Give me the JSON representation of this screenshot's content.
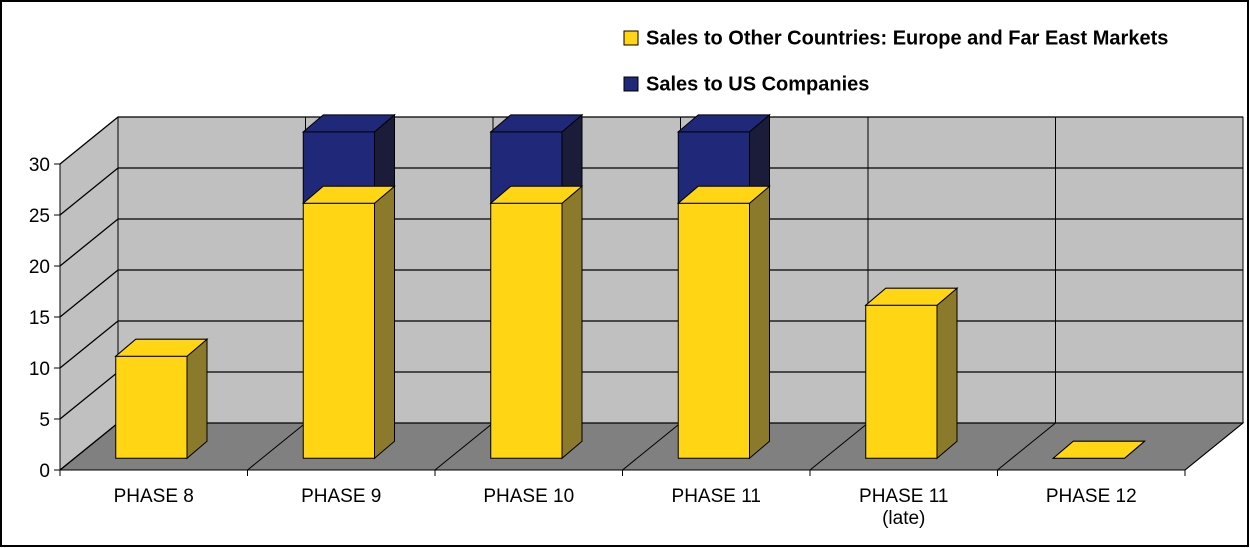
{
  "chart_data": {
    "type": "bar3d_stacked",
    "categories": [
      "PHASE 8",
      "PHASE 9",
      "PHASE 10",
      "PHASE 11",
      "PHASE 11\n(late)",
      "PHASE 12"
    ],
    "series": [
      {
        "name": "Sales to Other Countries: Europe and Far East Markets",
        "color": "#ffd514",
        "side": "#8c7a2c",
        "values": [
          10,
          25,
          25,
          25,
          15,
          0
        ]
      },
      {
        "name": "Sales to US Companies",
        "color": "#20287a",
        "side": "#1a1c3a",
        "values": [
          0,
          7,
          7,
          7,
          0,
          0
        ]
      }
    ],
    "ylim": [
      0,
      30
    ],
    "yticks": [
      0,
      5,
      10,
      15,
      20,
      25,
      30
    ],
    "grid": true
  }
}
